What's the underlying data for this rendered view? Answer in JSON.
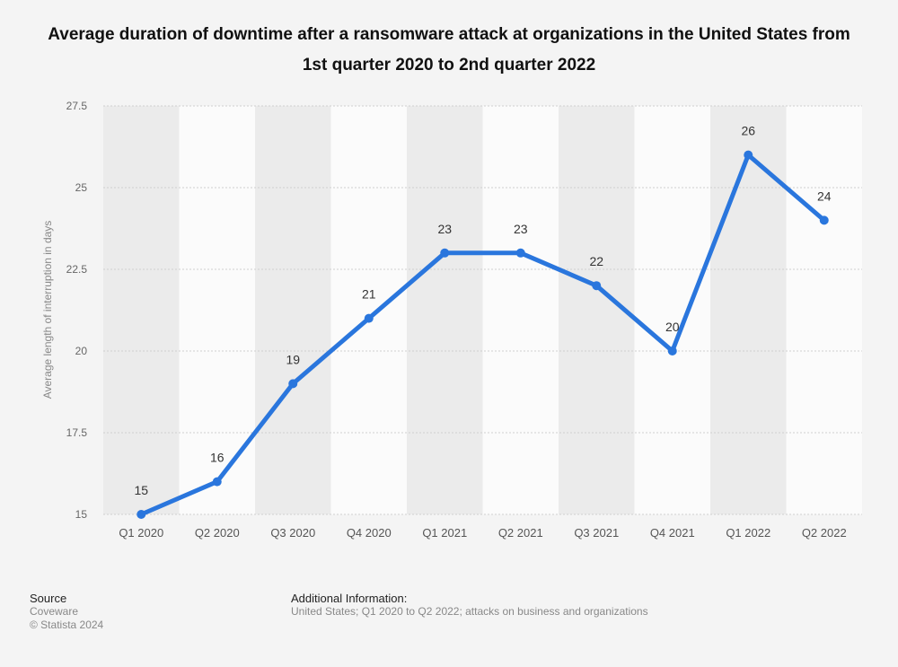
{
  "chart_data": {
    "type": "line",
    "title": "Average duration of downtime after a ransomware attack at organizations in the United States from 1st quarter 2020 to 2nd quarter 2022",
    "ylabel": "Average length of interruption in days",
    "xlabel": "",
    "categories": [
      "Q1 2020",
      "Q2 2020",
      "Q3 2020",
      "Q4 2020",
      "Q1 2021",
      "Q2 2021",
      "Q3 2021",
      "Q4 2021",
      "Q1 2022",
      "Q2 2022"
    ],
    "values": [
      15,
      16,
      19,
      21,
      23,
      23,
      22,
      20,
      26,
      24
    ],
    "ylim": [
      15,
      27.5
    ],
    "yticks": [
      "15",
      "17.5",
      "20",
      "22.5",
      "25",
      "27.5"
    ],
    "grid": true,
    "colors": {
      "line": "#2a76dd",
      "band": "#ebebeb"
    }
  },
  "footer": {
    "source_label": "Source",
    "source_lines": [
      "Coveware",
      "© Statista 2024"
    ],
    "info_label": "Additional Information:",
    "info_text": "United States; Q1 2020 to Q2 2022; attacks on business and organizations"
  }
}
